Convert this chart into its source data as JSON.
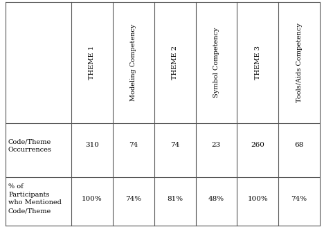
{
  "col_headers": [
    "THEME 1",
    "Modeling Competency",
    "THEME 2",
    "Symbol Competency",
    "THEME 3",
    "Tools/Aids Competency"
  ],
  "row_label_line1": "Code/Theme\nOccurrences\n% of\nParticipants\nwho Mentioned\nCode/Theme",
  "row1_values": [
    "310",
    "74",
    "74",
    "23",
    "260",
    "68"
  ],
  "row2_values": [
    "100%",
    "74%",
    "81%",
    "48%",
    "100%",
    "74%"
  ],
  "bg_color": "#ffffff",
  "border_color": "#555555",
  "text_color": "#000000",
  "font_size": 7.0,
  "header_font_size": 7.0
}
